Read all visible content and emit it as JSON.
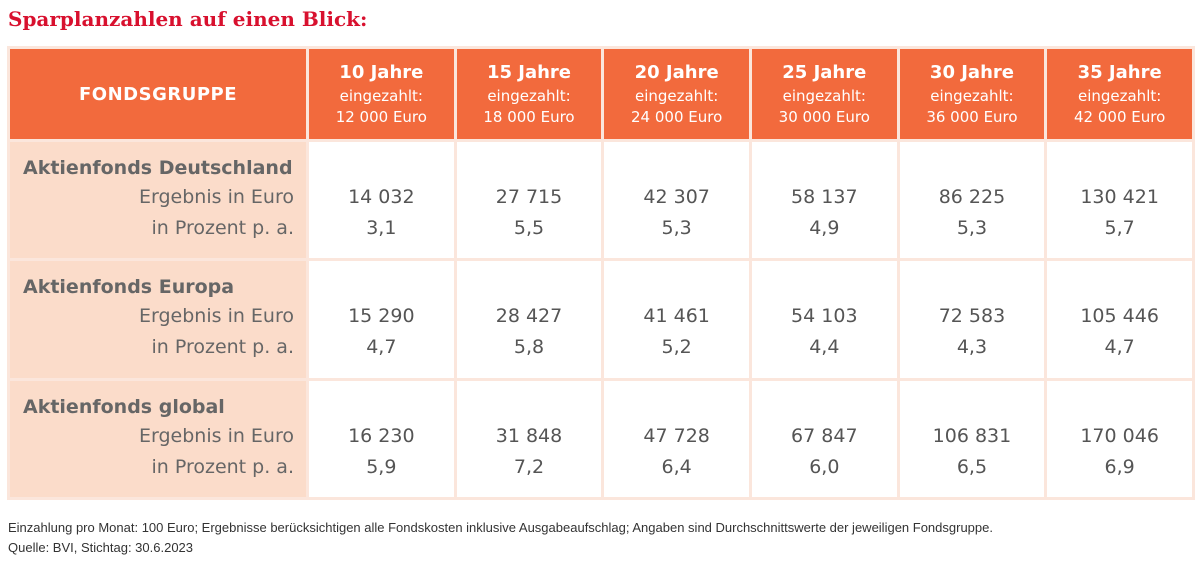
{
  "title": "Sparplanzahlen auf einen Blick:",
  "header": {
    "group_label": "FONDSGRUPPE",
    "columns": [
      {
        "years": "10 Jahre",
        "paid_label": "eingezahlt:",
        "paid_amount": "12 000 Euro"
      },
      {
        "years": "15 Jahre",
        "paid_label": "eingezahlt:",
        "paid_amount": "18 000 Euro"
      },
      {
        "years": "20 Jahre",
        "paid_label": "eingezahlt:",
        "paid_amount": "24 000 Euro"
      },
      {
        "years": "25 Jahre",
        "paid_label": "eingezahlt:",
        "paid_amount": "30 000 Euro"
      },
      {
        "years": "30 Jahre",
        "paid_label": "eingezahlt:",
        "paid_amount": "36 000 Euro"
      },
      {
        "years": "35 Jahre",
        "paid_label": "eingezahlt:",
        "paid_amount": "42 000 Euro"
      }
    ]
  },
  "row_labels": {
    "result": "Ergebnis in Euro",
    "percent": "in Prozent p. a."
  },
  "groups": [
    {
      "name": "Aktienfonds Deutschland",
      "results": [
        "14 032",
        "27 715",
        "42 307",
        "58 137",
        "86 225",
        "130 421"
      ],
      "percents": [
        "3,1",
        "5,5",
        "5,3",
        "4,9",
        "5,3",
        "5,7"
      ]
    },
    {
      "name": "Aktienfonds Europa",
      "results": [
        "15 290",
        "28 427",
        "41 461",
        "54 103",
        "72 583",
        "105 446"
      ],
      "percents": [
        "4,7",
        "5,8",
        "5,2",
        "4,4",
        "4,3",
        "4,7"
      ]
    },
    {
      "name": "Aktienfonds global",
      "results": [
        "16 230",
        "31 848",
        "47 728",
        "67 847",
        "106 831",
        "170 046"
      ],
      "percents": [
        "5,9",
        "7,2",
        "6,4",
        "6,0",
        "6,5",
        "6,9"
      ]
    }
  ],
  "footnote": {
    "line1": "Einzahlung pro Monat: 100 Euro; Ergebnisse berücksichtigen alle Fondskosten inklusive Ausgabeaufschlag; Angaben sind Durchschnittswerte der jeweiligen Fondsgruppe.",
    "line2": "Quelle: BVI, Stichtag: 30.6.2023"
  },
  "colors": {
    "title": "#d8102e",
    "header_bg": "#f26a3d",
    "label_bg": "#fbdcca",
    "border": "#fbe6dc"
  }
}
